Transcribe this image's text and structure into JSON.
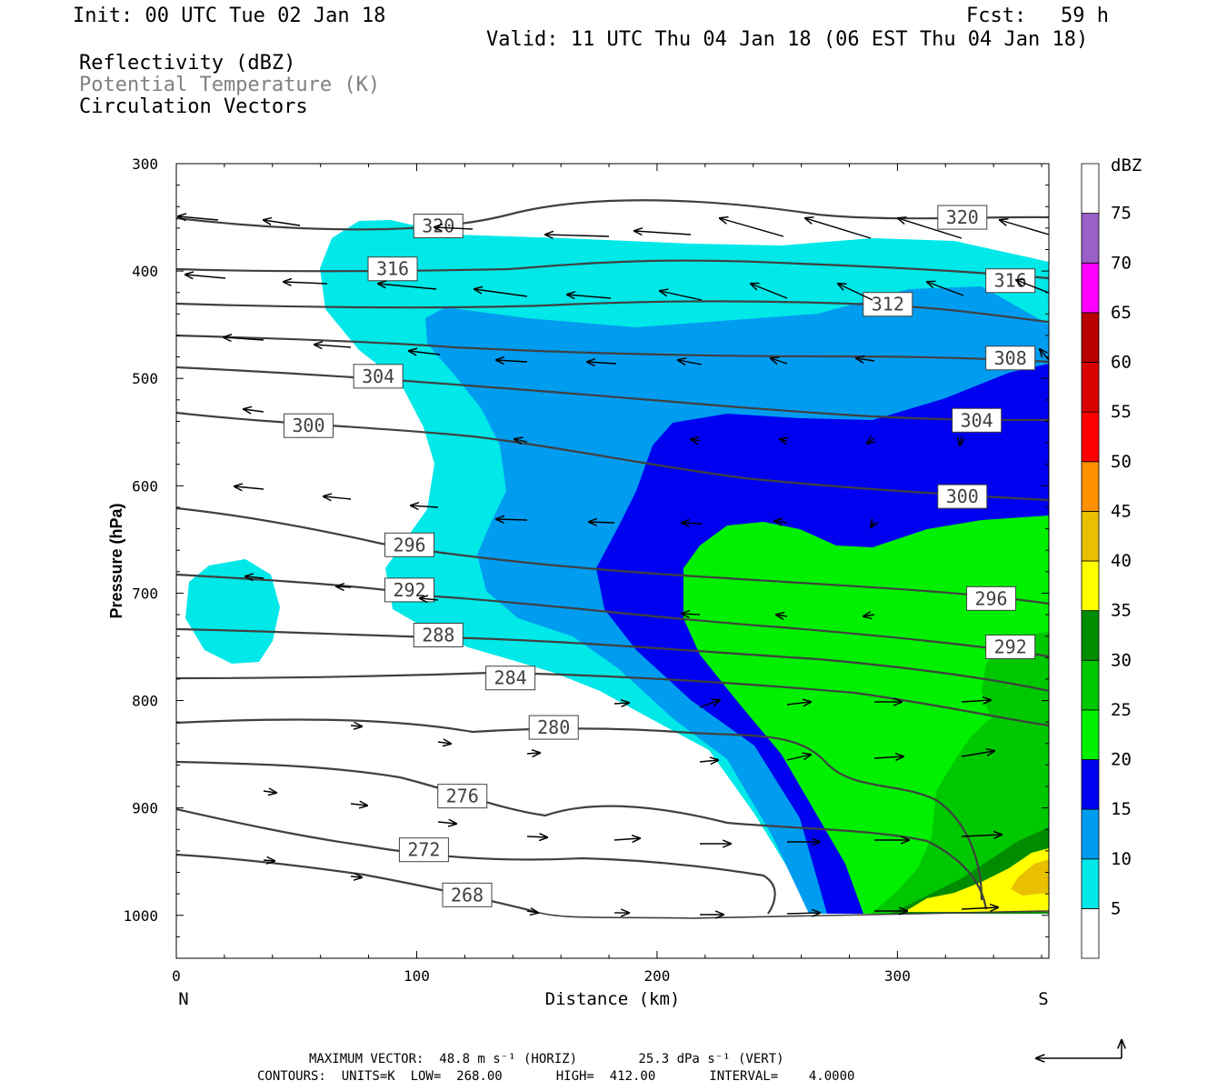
{
  "header": {
    "init": "Init: 00 UTC Tue 02 Jan 18",
    "fcst_label": "Fcst:",
    "fcst_value": "59 h",
    "valid": "Valid: 11 UTC Thu 04 Jan 18 (06 EST Thu 04 Jan 18)",
    "fields": [
      "Reflectivity (dBZ)",
      "Potential Temperature (K)",
      "Circulation Vectors"
    ]
  },
  "colors": {
    "cyan_5": "#00e8e8",
    "blue_10": "#009cf0",
    "blue_15": "#0000f0",
    "green_20": "#00f000",
    "green_25": "#00c800",
    "green_30": "#008c00",
    "yellow_35": "#ffff00",
    "gold_40": "#e8c000",
    "orange_45": "#ff9000",
    "red_50": "#ff0000",
    "red_55": "#d80000",
    "darkred_60": "#b80000",
    "magenta_65": "#ff00ff",
    "purple_70": "#9860c8",
    "contour": "#404040"
  },
  "chart_data": {
    "type": "heatmap",
    "xlabel": "Distance (km)",
    "ylabel": "Pressure (hPa)",
    "x_ticks": [
      "0",
      "100",
      "200",
      "300"
    ],
    "y_ticks": [
      "300",
      "400",
      "500",
      "600",
      "700",
      "800",
      "900",
      "1000"
    ],
    "xlim": [
      0,
      363
    ],
    "ylim": [
      1040,
      300
    ],
    "x_end_labels": {
      "left": "N",
      "right": "S"
    },
    "colorbar": {
      "title": "dBZ",
      "levels": [
        "5",
        "10",
        "15",
        "20",
        "25",
        "30",
        "35",
        "40",
        "45",
        "50",
        "55",
        "60",
        "65",
        "70",
        "75"
      ],
      "colors": [
        "#ffffff",
        "#00e8e8",
        "#009cf0",
        "#0000f0",
        "#00f000",
        "#00c800",
        "#008c00",
        "#ffff00",
        "#e8c000",
        "#ff9000",
        "#ff0000",
        "#d80000",
        "#b80000",
        "#ff00ff",
        "#9860c8",
        "#ffffff"
      ]
    },
    "contour_labels": [
      {
        "value": "320",
        "x": 109,
        "p": 358
      },
      {
        "value": "320",
        "x": 327,
        "p": 350
      },
      {
        "value": "316",
        "x": 90,
        "p": 398
      },
      {
        "value": "316",
        "x": 347,
        "p": 409
      },
      {
        "value": "312",
        "x": 296,
        "p": 431
      },
      {
        "value": "308",
        "x": 347,
        "p": 481
      },
      {
        "value": "304",
        "x": 84,
        "p": 498
      },
      {
        "value": "304",
        "x": 333,
        "p": 539
      },
      {
        "value": "300",
        "x": 55,
        "p": 544
      },
      {
        "value": "300",
        "x": 327,
        "p": 610
      },
      {
        "value": "296",
        "x": 97,
        "p": 655
      },
      {
        "value": "296",
        "x": 339,
        "p": 705
      },
      {
        "value": "292",
        "x": 97,
        "p": 697
      },
      {
        "value": "292",
        "x": 347,
        "p": 750
      },
      {
        "value": "288",
        "x": 109,
        "p": 739
      },
      {
        "value": "284",
        "x": 139,
        "p": 779
      },
      {
        "value": "280",
        "x": 157,
        "p": 825
      },
      {
        "value": "276",
        "x": 119,
        "p": 889
      },
      {
        "value": "272",
        "x": 103,
        "p": 939
      },
      {
        "value": "268",
        "x": 121,
        "p": 981
      }
    ]
  },
  "footer": {
    "max_vector": "MAXIMUM VECTOR:  48.8 m s⁻¹ (HORIZ)        25.3 dPa s⁻¹ (VERT)",
    "contours": "CONTOURS:  UNITS=K  LOW=  268.00       HIGH=  412.00       INTERVAL=    4.0000"
  }
}
